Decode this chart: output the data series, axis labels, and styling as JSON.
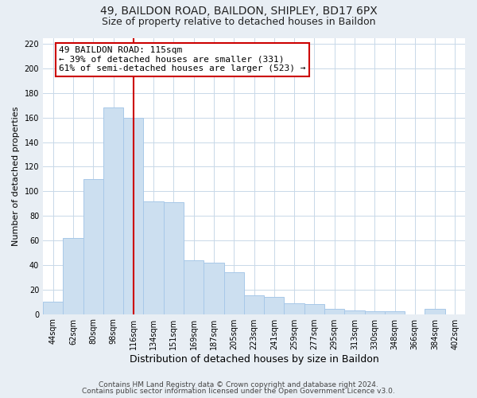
{
  "title1": "49, BAILDON ROAD, BAILDON, SHIPLEY, BD17 6PX",
  "title2": "Size of property relative to detached houses in Baildon",
  "xlabel": "Distribution of detached houses by size in Baildon",
  "ylabel": "Number of detached properties",
  "bar_labels": [
    "44sqm",
    "62sqm",
    "80sqm",
    "98sqm",
    "116sqm",
    "134sqm",
    "151sqm",
    "169sqm",
    "187sqm",
    "205sqm",
    "223sqm",
    "241sqm",
    "259sqm",
    "277sqm",
    "295sqm",
    "313sqm",
    "330sqm",
    "348sqm",
    "366sqm",
    "384sqm",
    "402sqm"
  ],
  "bar_values": [
    10,
    62,
    110,
    168,
    160,
    92,
    91,
    44,
    42,
    34,
    15,
    14,
    9,
    8,
    4,
    3,
    2,
    2,
    0,
    4,
    0
  ],
  "bar_color": "#ccdff0",
  "bar_edge_color": "#a8c8e8",
  "ylim": [
    0,
    225
  ],
  "yticks": [
    0,
    20,
    40,
    60,
    80,
    100,
    120,
    140,
    160,
    180,
    200,
    220
  ],
  "vline_x_index": 4,
  "vline_color": "#cc0000",
  "annotation_text": "49 BAILDON ROAD: 115sqm\n← 39% of detached houses are smaller (331)\n61% of semi-detached houses are larger (523) →",
  "annotation_box_color": "#ffffff",
  "annotation_box_edge": "#cc0000",
  "footer1": "Contains HM Land Registry data © Crown copyright and database right 2024.",
  "footer2": "Contains public sector information licensed under the Open Government Licence v3.0.",
  "background_color": "#e8eef4",
  "plot_bg_color": "#ffffff",
  "title_fontsize": 10,
  "subtitle_fontsize": 9,
  "ylabel_fontsize": 8,
  "xlabel_fontsize": 9,
  "tick_fontsize": 7,
  "annotation_fontsize": 8,
  "footer_fontsize": 6.5,
  "grid_color": "#c8d8e8"
}
